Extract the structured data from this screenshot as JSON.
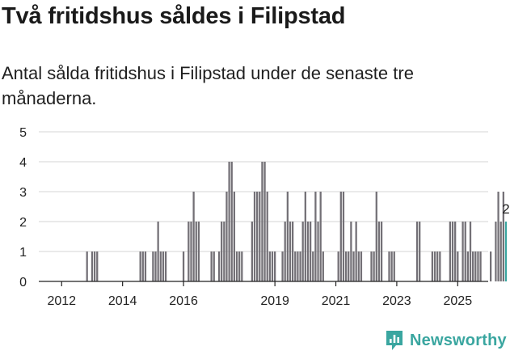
{
  "header": {
    "title": "Två fritidshus såldes i Filipstad",
    "subtitle": "Antal sålda fritidshus i Filipstad under de senaste tre månaderna."
  },
  "brand": {
    "name": "Newsworthy",
    "color": "#3aa6a0"
  },
  "chart_data": {
    "type": "bar",
    "title": "",
    "xlabel": "",
    "ylabel": "",
    "ylim": [
      0,
      5
    ],
    "yticks": [
      0,
      1,
      2,
      3,
      4,
      5
    ],
    "xticks": [
      "2012",
      "2014",
      "2016",
      "2019",
      "2021",
      "2023",
      "2025"
    ],
    "xtick_positions": [
      2012,
      2014,
      2016,
      2019,
      2021,
      2023,
      2025
    ],
    "x_range": [
      2011.25,
      2026.0
    ],
    "bar_color": "#737076",
    "highlight_color": "#3aa6a0",
    "grid": "horizontal",
    "series_start": "2011-04",
    "frequency": "monthly",
    "values": [
      0,
      0,
      0,
      0,
      0,
      0,
      0,
      0,
      0,
      0,
      0,
      0,
      0,
      0,
      0,
      0,
      0,
      0,
      0,
      1,
      0,
      1,
      1,
      1,
      0,
      0,
      0,
      0,
      0,
      0,
      0,
      0,
      0,
      0,
      0,
      0,
      0,
      0,
      0,
      0,
      1,
      1,
      1,
      0,
      0,
      1,
      1,
      2,
      1,
      1,
      1,
      0,
      0,
      0,
      0,
      0,
      0,
      1,
      0,
      2,
      2,
      3,
      2,
      2,
      0,
      0,
      0,
      0,
      1,
      1,
      0,
      1,
      2,
      2,
      3,
      4,
      4,
      3,
      1,
      1,
      1,
      0,
      0,
      0,
      2,
      3,
      3,
      3,
      4,
      4,
      3,
      1,
      1,
      1,
      0,
      0,
      1,
      2,
      3,
      2,
      2,
      1,
      1,
      1,
      2,
      3,
      2,
      2,
      1,
      3,
      2,
      3,
      1,
      0,
      0,
      0,
      0,
      0,
      1,
      3,
      3,
      1,
      1,
      2,
      1,
      2,
      1,
      1,
      0,
      0,
      0,
      1,
      1,
      3,
      2,
      2,
      0,
      0,
      1,
      1,
      1,
      0,
      0,
      0,
      0,
      0,
      0,
      0,
      0,
      2,
      2,
      0,
      0,
      0,
      0,
      1,
      1,
      1,
      1,
      0,
      0,
      0,
      2,
      2,
      2,
      1,
      0,
      2,
      2,
      1,
      2,
      1,
      1,
      1,
      1,
      0,
      0,
      0,
      1,
      0,
      2,
      3,
      2,
      3,
      2
    ],
    "highlight_last": true,
    "annotation": {
      "label": "2",
      "target": "last"
    }
  }
}
